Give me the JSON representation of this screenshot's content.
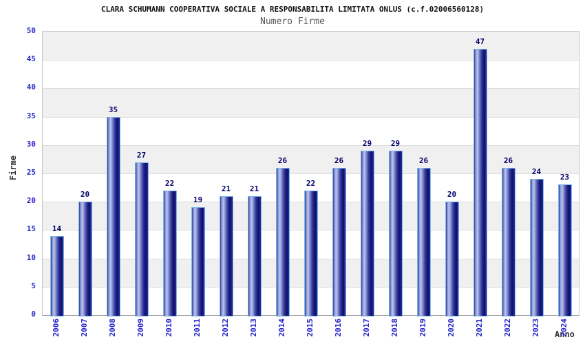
{
  "header": {
    "title": "CLARA SCHUMANN COOPERATIVA SOCIALE A RESPONSABILITA LIMITATA ONLUS (c.f.02006560128)",
    "subtitle": "Numero Firme"
  },
  "chart_data": {
    "type": "bar",
    "title": "Numero Firme",
    "categories": [
      "2006",
      "2007",
      "2008",
      "2009",
      "2010",
      "2011",
      "2012",
      "2013",
      "2014",
      "2015",
      "2016",
      "2017",
      "2018",
      "2019",
      "2020",
      "2021",
      "2022",
      "2023",
      "2024"
    ],
    "values": [
      14,
      20,
      35,
      27,
      22,
      19,
      21,
      21,
      26,
      22,
      26,
      29,
      29,
      26,
      20,
      47,
      26,
      24,
      23
    ],
    "xlabel": "Anno",
    "ylabel": "Firme",
    "ylim": [
      0,
      50
    ],
    "ytick_step": 5,
    "grid": "horizontal",
    "legend": "none",
    "plot_background": "alternating-bands"
  },
  "colors": {
    "band_gray": "#f0f0f0",
    "band_white": "#ffffff",
    "gridline": "#dcdcdc",
    "plot_border": "#c8c8c8",
    "axis_line": "#a0a0a0",
    "tick_text": "#2424cc",
    "value_label": "#00006a",
    "bar_dark": "#1a1a7c",
    "bar_light": "#bcc4ec",
    "bar_edge_highlight": "#7cb8e6",
    "bar_right_stripe": "#2e3ed4",
    "title_text": "#111111",
    "subtitle_text": "#555555",
    "axis_title_text": "#333333"
  }
}
